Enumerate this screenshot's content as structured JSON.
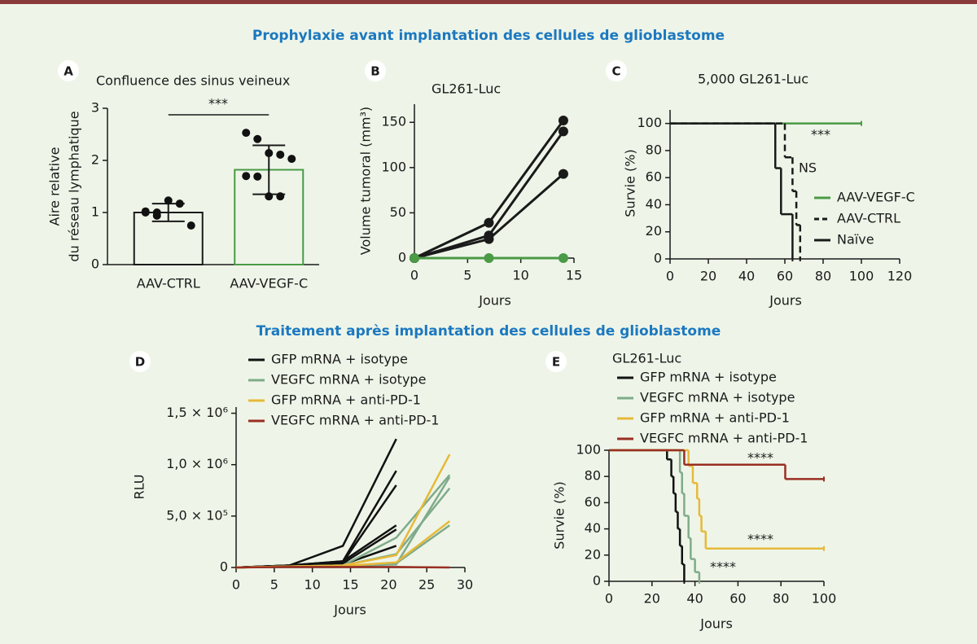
{
  "sections": [
    "Prophylaxie avant implantation des cellules de glioblastome",
    "Traitement après implantation des cellules de glioblastome"
  ],
  "chart_data": [
    {
      "panel": "A",
      "type": "bar",
      "title": "Confluence des sinus veineux",
      "ylabel": [
        "Aire relative",
        "du réseau lymphatique"
      ],
      "categories": [
        "AAV-CTRL",
        "AAV-VEGF-C"
      ],
      "values": [
        1.0,
        1.82
      ],
      "errors": [
        0.17,
        0.47
      ],
      "colors": [
        "#1a1a1a",
        "#4a9a46"
      ],
      "points": [
        [
          1.02,
          1.0,
          1.23,
          1.17,
          0.75,
          1.0,
          0.94
        ],
        [
          2.53,
          2.41,
          2.14,
          2.11,
          2.03,
          1.7,
          1.69,
          1.31,
          1.31
        ]
      ],
      "ylim": [
        0,
        3
      ],
      "yticks": [
        0,
        1,
        2,
        3
      ],
      "annotations": [
        "***"
      ]
    },
    {
      "panel": "B",
      "type": "line",
      "title": "GL261-Luc",
      "ylabel": "Volume tumoral (mm³)",
      "xlabel": "Jours",
      "markers": true,
      "x": [
        0,
        7,
        14
      ],
      "series": [
        {
          "color": "#1a1a1a",
          "values": [
            0,
            39,
            152
          ]
        },
        {
          "color": "#1a1a1a",
          "values": [
            0,
            25,
            140
          ]
        },
        {
          "color": "#1a1a1a",
          "values": [
            0,
            21,
            93
          ]
        },
        {
          "color": "#4a9a46",
          "values": [
            0,
            0,
            0
          ]
        }
      ],
      "xlim": [
        0,
        15
      ],
      "xticks": [
        0,
        5,
        10,
        15
      ],
      "ylim": [
        0,
        170
      ],
      "yticks": [
        0,
        50,
        100,
        150
      ]
    },
    {
      "panel": "C",
      "type": "survival",
      "title": "5,000 GL261-Luc",
      "ylabel": "Survie (%)",
      "xlabel": "Jours",
      "series": [
        {
          "name": "AAV-VEGF-C",
          "color": "#4a9a46",
          "dash": false,
          "x": [
            0,
            100
          ],
          "values": [
            100,
            100
          ]
        },
        {
          "name": "AAV-CTRL",
          "color": "#1a1a1a",
          "dash": true,
          "x": [
            0,
            60,
            64,
            66,
            68
          ],
          "values": [
            100,
            75,
            50,
            25,
            0
          ]
        },
        {
          "name": "Naïve",
          "color": "#1a1a1a",
          "dash": false,
          "x": [
            0,
            55,
            58,
            64
          ],
          "values": [
            100,
            67,
            33,
            0
          ]
        }
      ],
      "xlim": [
        0,
        120
      ],
      "xticks": [
        0,
        20,
        40,
        60,
        80,
        100,
        120
      ],
      "ylim": [
        0,
        110
      ],
      "yticks": [
        0,
        20,
        40,
        60,
        80,
        100
      ],
      "annotations": [
        "***",
        "NS"
      ]
    },
    {
      "panel": "D",
      "type": "line",
      "ylabel": "RLU",
      "xlabel": "Jours",
      "markers": false,
      "series": [
        {
          "name": "GFP mRNA + isotype",
          "color": "#111111",
          "x": [
            0,
            7,
            14,
            21
          ],
          "values": [
            [
              0,
              20000,
              210000,
              1250000
            ],
            [
              0,
              20000,
              60000,
              940000
            ],
            [
              0,
              20000,
              50000,
              800000
            ],
            [
              0,
              20000,
              60000,
              410000
            ],
            [
              0,
              10000,
              40000,
              370000
            ],
            [
              0,
              10000,
              30000,
              210000
            ]
          ]
        },
        {
          "name": "VEGFC mRNA + isotype",
          "color": "#7fab8a",
          "x": [
            0,
            7,
            14,
            21,
            28
          ],
          "values": [
            [
              0,
              10000,
              20000,
              290000,
              900000
            ],
            [
              0,
              10000,
              20000,
              130000,
              770000
            ],
            [
              0,
              10000,
              15000,
              40000,
              410000
            ],
            [
              0,
              10000,
              15000,
              30000,
              880000
            ]
          ]
        },
        {
          "name": "GFP mRNA + anti-PD-1",
          "color": "#e6b93a",
          "x": [
            0,
            7,
            14,
            21,
            28
          ],
          "values": [
            [
              0,
              10000,
              20000,
              120000,
              1100000
            ],
            [
              0,
              10000,
              15000,
              50000,
              450000
            ]
          ]
        },
        {
          "name": "VEGFC mRNA + anti-PD-1",
          "color": "#9a2e22",
          "x": [
            0,
            7,
            14,
            21,
            28
          ],
          "values": [
            [
              0,
              5000,
              5000,
              5000,
              0
            ]
          ]
        }
      ],
      "xlim": [
        0,
        30
      ],
      "xticks": [
        0,
        5,
        10,
        15,
        20,
        25,
        30
      ],
      "ylim": [
        0,
        1560000
      ],
      "yticks": [
        0,
        {
          "value": 500000,
          "label": "5,0 × 10⁵"
        },
        {
          "value": 1000000,
          "label": "1,0 × 10⁶"
        },
        {
          "value": 1500000,
          "label": "1,5 × 10⁶"
        }
      ]
    },
    {
      "panel": "E",
      "type": "survival",
      "title": "GL261-Luc",
      "ylabel": "Survie (%)",
      "xlabel": "Jours",
      "series": [
        {
          "name": "GFP mRNA + isotype",
          "color": "#111111",
          "dash": false,
          "x": [
            0,
            27,
            29,
            30,
            31,
            32,
            33,
            34,
            35
          ],
          "values": [
            100,
            93,
            80,
            67,
            53,
            40,
            27,
            13,
            0
          ]
        },
        {
          "name": "VEGFC mRNA + isotype",
          "color": "#7fab8a",
          "dash": false,
          "x": [
            0,
            33,
            34,
            35,
            37,
            38,
            40,
            42
          ],
          "values": [
            100,
            83,
            67,
            50,
            33,
            17,
            7,
            0
          ]
        },
        {
          "name": "GFP mRNA + anti-PD-1",
          "color": "#e6b93a",
          "dash": false,
          "x": [
            0,
            37,
            39,
            41,
            42,
            43,
            45,
            100
          ],
          "values": [
            100,
            88,
            75,
            63,
            50,
            38,
            25,
            25
          ]
        },
        {
          "name": "VEGFC mRNA + anti-PD-1",
          "color": "#9a2e22",
          "dash": false,
          "x": [
            0,
            35,
            82,
            100
          ],
          "values": [
            100,
            89,
            78,
            78
          ]
        }
      ],
      "xlim": [
        0,
        100
      ],
      "xticks": [
        0,
        20,
        40,
        60,
        80,
        100
      ],
      "ylim": [
        0,
        100
      ],
      "yticks": [
        0,
        20,
        40,
        60,
        80,
        100
      ],
      "annotations": [
        "****",
        "****",
        "****"
      ]
    }
  ]
}
